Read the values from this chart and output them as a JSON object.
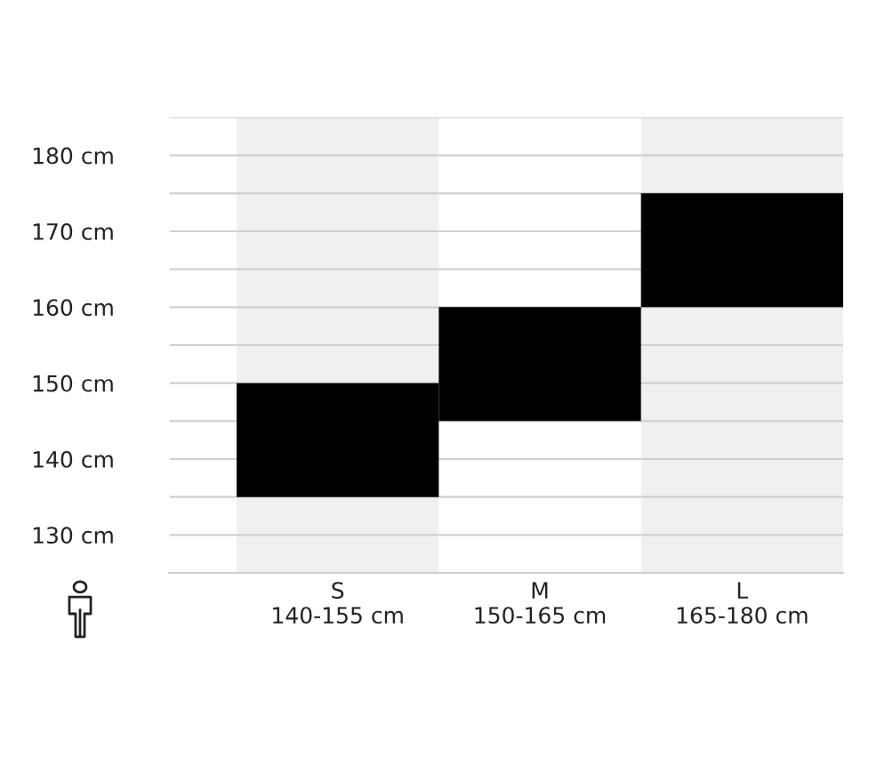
{
  "chart_data": {
    "type": "bar",
    "categories": [
      "S\n140-155 cm",
      "M\n150-165 cm",
      "L\n165-180 cm"
    ],
    "values": [
      15,
      15,
      15
    ],
    "base": [
      135,
      145,
      160
    ],
    "color": "#000000",
    "ylim": [
      125,
      185
    ],
    "yticks": [
      {
        "value": 130,
        "label": "130 cm"
      },
      {
        "value": 135,
        "label": null
      },
      {
        "value": 140,
        "label": "140 cm"
      },
      {
        "value": 145,
        "label": null
      },
      {
        "value": 150,
        "label": "150 cm"
      },
      {
        "value": 155,
        "label": null
      },
      {
        "value": 160,
        "label": "160 cm"
      },
      {
        "value": 165,
        "label": null
      },
      {
        "value": 170,
        "label": "170 cm"
      },
      {
        "value": 175,
        "label": null
      },
      {
        "value": 180,
        "label": "180 cm"
      },
      {
        "value": 185,
        "label": null
      }
    ],
    "grid": "y"
  }
}
